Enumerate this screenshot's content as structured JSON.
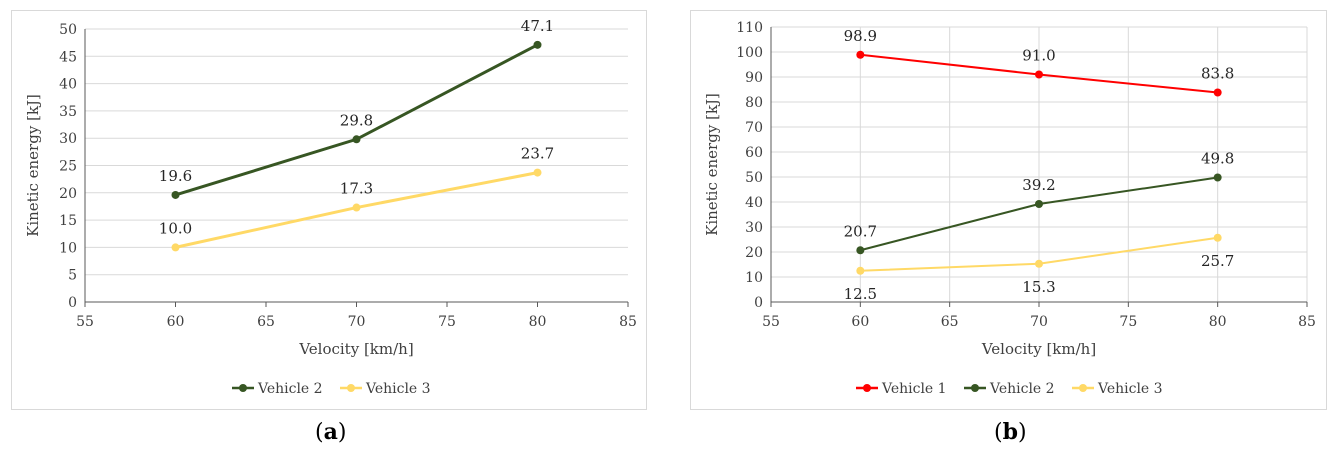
{
  "figure": {
    "caption_a": "a",
    "caption_b": "b"
  },
  "chart_data": [
    {
      "type": "line",
      "panel": "a",
      "title": "",
      "xlabel": "Velocity [km/h]",
      "ylabel": "Kinetic energy [kJ]",
      "xlim": [
        55,
        85
      ],
      "ylim": [
        0,
        50
      ],
      "xticks": [
        55,
        60,
        65,
        70,
        75,
        80,
        85
      ],
      "yticks": [
        0,
        5,
        10,
        15,
        20,
        25,
        30,
        35,
        40,
        45,
        50
      ],
      "grid": "horizontal",
      "legend": "bottom",
      "x": [
        60,
        70,
        80
      ],
      "series": [
        {
          "name": "Vehicle 2",
          "color": "#375623",
          "values": [
            19.6,
            29.8,
            47.1
          ],
          "labels": [
            "19.6",
            "29.8",
            "47.1"
          ],
          "label_pos": [
            "above",
            "above",
            "above"
          ]
        },
        {
          "name": "Vehicle 3",
          "color": "#ffd966",
          "values": [
            10.0,
            17.3,
            23.7
          ],
          "labels": [
            "10.0",
            "17.3",
            "23.7"
          ],
          "label_pos": [
            "above",
            "above",
            "above"
          ]
        }
      ]
    },
    {
      "type": "line",
      "panel": "b",
      "title": "",
      "xlabel": "Velocity [km/h]",
      "ylabel": "Kinetic energy [kJ]",
      "xlim": [
        55,
        85
      ],
      "ylim": [
        0,
        110
      ],
      "xticks": [
        55,
        60,
        65,
        70,
        75,
        80,
        85
      ],
      "yticks": [
        0,
        10,
        20,
        30,
        40,
        50,
        60,
        70,
        80,
        90,
        100,
        110
      ],
      "grid": "both",
      "legend": "bottom",
      "x": [
        60,
        70,
        80
      ],
      "series": [
        {
          "name": "Vehicle 1",
          "color": "#ff0000",
          "values": [
            98.9,
            91.0,
            83.8
          ],
          "labels": [
            "98.9",
            "91.0",
            "83.8"
          ],
          "label_pos": [
            "above",
            "above",
            "above"
          ]
        },
        {
          "name": "Vehicle 2",
          "color": "#375623",
          "values": [
            20.7,
            39.2,
            49.8
          ],
          "labels": [
            "20.7",
            "39.2",
            "49.8"
          ],
          "label_pos": [
            "above",
            "above",
            "above"
          ]
        },
        {
          "name": "Vehicle 3",
          "color": "#ffd966",
          "values": [
            12.5,
            15.3,
            25.7
          ],
          "labels": [
            "12.5",
            "15.3",
            "25.7"
          ],
          "label_pos": [
            "below",
            "below",
            "below"
          ]
        }
      ]
    }
  ]
}
